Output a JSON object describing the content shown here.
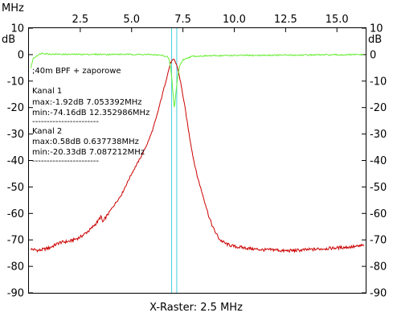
{
  "chart_data": {
    "type": "line",
    "x_unit_label": "MHz",
    "y_unit_label": "dB",
    "xlabel": "X-Raster: 2.5 MHz",
    "xlim": [
      0,
      16.4
    ],
    "ylim": [
      -90,
      10
    ],
    "x_ticks": [
      {
        "value": 2.5,
        "label": "2.5"
      },
      {
        "value": 5.0,
        "label": "5.0"
      },
      {
        "value": 7.5,
        "label": "7.5"
      },
      {
        "value": 10.0,
        "label": "10.0"
      },
      {
        "value": 12.5,
        "label": "12.5"
      },
      {
        "value": 15.0,
        "label": "15.0"
      }
    ],
    "y_ticks": [
      {
        "value": 10,
        "label": "10"
      },
      {
        "value": 0,
        "label": "0"
      },
      {
        "value": -10,
        "label": "-10"
      },
      {
        "value": -20,
        "label": "-20"
      },
      {
        "value": -30,
        "label": "-30"
      },
      {
        "value": -40,
        "label": "-40"
      },
      {
        "value": -50,
        "label": "-50"
      },
      {
        "value": -60,
        "label": "-60"
      },
      {
        "value": -70,
        "label": "-70"
      },
      {
        "value": -80,
        "label": "-80"
      },
      {
        "value": -90,
        "label": "-90"
      }
    ],
    "markers_mhz": [
      6.95,
      7.2
    ],
    "grid": false,
    "annotations": [
      ";40m BPF + zaporowe",
      "Kanal 1",
      "max:-1.92dB 7.053392MHz",
      "min:-74.16dB 12.352986MHz",
      "-----------------------",
      "Kanal 2",
      "max:0.58dB 0.637738MHz",
      "min:-20.33dB 7.087212MHz",
      "-----------------------"
    ],
    "series": [
      {
        "color": "#cc0000",
        "x": [
          0.1,
          0.5,
          1.0,
          1.5,
          2.0,
          2.5,
          3.0,
          3.3,
          3.4,
          3.5,
          3.6,
          3.7,
          4.0,
          4.5,
          5.0,
          5.5,
          5.8,
          6.0,
          6.2,
          6.4,
          6.6,
          6.8,
          6.9,
          7.0,
          7.05,
          7.1,
          7.2,
          7.3,
          7.4,
          7.6,
          7.8,
          8.0,
          8.2,
          8.5,
          8.8,
          9.0,
          9.3,
          9.6,
          10.0,
          10.5,
          11.0,
          11.5,
          12.0,
          12.35,
          13.0,
          14.0,
          15.0,
          16.0,
          16.3
        ],
        "values": [
          -73.5,
          -74,
          -73,
          -71,
          -70.5,
          -69,
          -66,
          -63.5,
          -62.5,
          -61,
          -63.5,
          -62,
          -58.5,
          -53,
          -45,
          -38,
          -33,
          -29,
          -24,
          -18,
          -12,
          -6,
          -3,
          -2.2,
          -1.9,
          -2.3,
          -4,
          -7,
          -11,
          -20,
          -30,
          -39,
          -46,
          -54,
          -62,
          -66,
          -70,
          -71.5,
          -72.5,
          -73,
          -73.5,
          -73.8,
          -73.7,
          -74.16,
          -74,
          -73.5,
          -73,
          -72.5,
          -72
        ]
      },
      {
        "color": "#66ee33",
        "x": [
          0.1,
          0.2,
          0.4,
          0.637738,
          1.0,
          2.0,
          3.0,
          4.0,
          5.0,
          6.0,
          6.5,
          6.75,
          6.85,
          6.95,
          7.02,
          7.087212,
          7.15,
          7.25,
          7.35,
          7.5,
          7.8,
          8.0,
          9.0,
          10.0,
          11.0,
          12.0,
          13.0,
          14.0,
          15.0,
          16.0,
          16.3
        ],
        "values": [
          -5,
          -1.5,
          -0.3,
          0.58,
          0.2,
          0.1,
          0.1,
          0.1,
          0.1,
          0,
          -0.3,
          -0.8,
          -2.5,
          -8,
          -15,
          -20.33,
          -15,
          -8,
          -4,
          -2,
          -1,
          -0.6,
          -0.4,
          -0.3,
          -0.3,
          -0.2,
          -0.2,
          -0.1,
          -0.1,
          0,
          0
        ]
      }
    ]
  }
}
